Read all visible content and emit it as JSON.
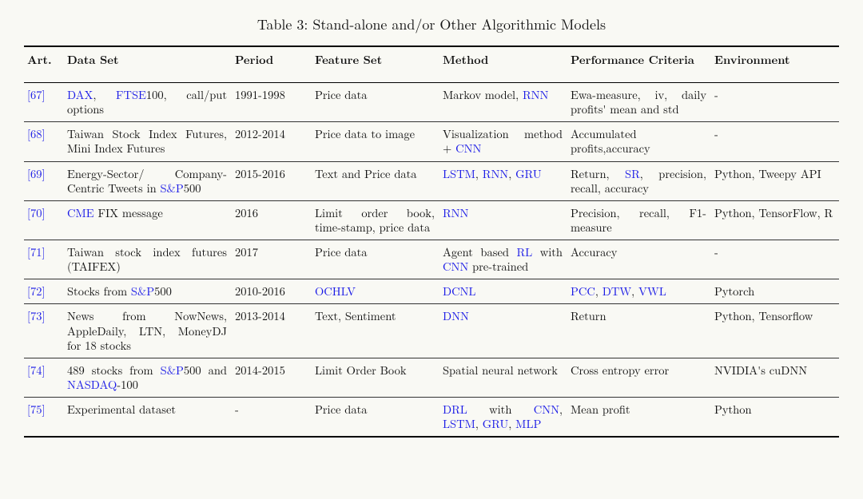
{
  "caption": "Table 3: Stand-alone and/or Other Algorithmic Models",
  "columns": [
    "Art.",
    "Data Set",
    "Period",
    "Feature Set",
    "Method",
    "Performance Criteria",
    "Environment"
  ],
  "rows": [
    {
      "art": [
        {
          "t": "[67]",
          "link": true
        }
      ],
      "dataset": [
        {
          "t": "DAX",
          "link": true
        },
        {
          "t": ", "
        },
        {
          "t": "FTSE",
          "link": true
        },
        {
          "t": "100, call/put options"
        }
      ],
      "period": [
        {
          "t": "1991-1998"
        }
      ],
      "feature": [
        {
          "t": "Price data"
        }
      ],
      "method": [
        {
          "t": "Markov model, "
        },
        {
          "t": "RNN",
          "link": true
        }
      ],
      "perf": [
        {
          "t": "Ewa-measure, iv, daily profits' mean and std"
        }
      ],
      "env": [
        {
          "t": "-"
        }
      ]
    },
    {
      "art": [
        {
          "t": "[68]",
          "link": true
        }
      ],
      "dataset": [
        {
          "t": "Taiwan Stock Index Futures, Mini Index Futures"
        }
      ],
      "period": [
        {
          "t": "2012-2014"
        }
      ],
      "feature": [
        {
          "t": "Price data to image"
        }
      ],
      "method": [
        {
          "t": "Visualization method + "
        },
        {
          "t": "CNN",
          "link": true
        }
      ],
      "perf": [
        {
          "t": "Accumulated profits,accuracy"
        }
      ],
      "env": [
        {
          "t": "-"
        }
      ]
    },
    {
      "art": [
        {
          "t": "[69]",
          "link": true
        }
      ],
      "dataset": [
        {
          "t": "Energy-Sector/ Company-Centric Tweets in "
        },
        {
          "t": "S&P",
          "link": true
        },
        {
          "t": "500"
        }
      ],
      "period": [
        {
          "t": "2015-2016"
        }
      ],
      "feature": [
        {
          "t": "Text and Price data"
        }
      ],
      "method": [
        {
          "t": "LSTM",
          "link": true
        },
        {
          "t": ", "
        },
        {
          "t": "RNN",
          "link": true
        },
        {
          "t": ", "
        },
        {
          "t": "GRU",
          "link": true
        }
      ],
      "perf": [
        {
          "t": "Return, "
        },
        {
          "t": "SR",
          "link": true
        },
        {
          "t": ", precision, recall, accuracy"
        }
      ],
      "env": [
        {
          "t": "Python, Tweepy API"
        }
      ]
    },
    {
      "art": [
        {
          "t": "[70]",
          "link": true
        }
      ],
      "dataset": [
        {
          "t": "CME",
          "link": true
        },
        {
          "t": " FIX message"
        }
      ],
      "period": [
        {
          "t": "2016"
        }
      ],
      "feature": [
        {
          "t": "Limit order book, time-stamp, price data"
        }
      ],
      "method": [
        {
          "t": "RNN",
          "link": true
        }
      ],
      "perf": [
        {
          "t": "Precision, recall, F1-measure"
        }
      ],
      "env": [
        {
          "t": "Python, TensorFlow, R"
        }
      ]
    },
    {
      "art": [
        {
          "t": "[71]",
          "link": true
        }
      ],
      "dataset": [
        {
          "t": "Taiwan stock index futures (TAIFEX)"
        }
      ],
      "period": [
        {
          "t": "2017"
        }
      ],
      "feature": [
        {
          "t": "Price data"
        }
      ],
      "method": [
        {
          "t": "Agent based "
        },
        {
          "t": "RL",
          "link": true
        },
        {
          "t": " with "
        },
        {
          "t": "CNN",
          "link": true
        },
        {
          "t": " pre-trained"
        }
      ],
      "perf": [
        {
          "t": "Accuracy"
        }
      ],
      "env": [
        {
          "t": "-"
        }
      ]
    },
    {
      "art": [
        {
          "t": "[72]",
          "link": true
        }
      ],
      "dataset": [
        {
          "t": "Stocks from "
        },
        {
          "t": "S&P",
          "link": true
        },
        {
          "t": "500"
        }
      ],
      "period": [
        {
          "t": "2010-2016"
        }
      ],
      "feature": [
        {
          "t": "OCHLV",
          "link": true
        }
      ],
      "method": [
        {
          "t": "DCNL",
          "link": true
        }
      ],
      "perf": [
        {
          "t": "PCC",
          "link": true
        },
        {
          "t": ", "
        },
        {
          "t": "DTW",
          "link": true
        },
        {
          "t": ", "
        },
        {
          "t": "VWL",
          "link": true
        }
      ],
      "env": [
        {
          "t": "Pytorch"
        }
      ]
    },
    {
      "art": [
        {
          "t": "[73]",
          "link": true
        }
      ],
      "dataset": [
        {
          "t": "News from NowNews, AppleDaily, LTN, MoneyDJ for 18 stocks"
        }
      ],
      "period": [
        {
          "t": "2013-2014"
        }
      ],
      "feature": [
        {
          "t": "Text, Sentiment"
        }
      ],
      "method": [
        {
          "t": "DNN",
          "link": true
        }
      ],
      "perf": [
        {
          "t": "Return"
        }
      ],
      "env": [
        {
          "t": "Python, Tensorflow"
        }
      ]
    },
    {
      "art": [
        {
          "t": "[74]",
          "link": true
        }
      ],
      "dataset": [
        {
          "t": "489 stocks from "
        },
        {
          "t": "S&P",
          "link": true
        },
        {
          "t": "500 and "
        },
        {
          "t": "NASDAQ",
          "link": true
        },
        {
          "t": "-100"
        }
      ],
      "period": [
        {
          "t": "2014-2015"
        }
      ],
      "feature": [
        {
          "t": "Limit Order Book"
        }
      ],
      "method": [
        {
          "t": "Spatial neural network"
        }
      ],
      "perf": [
        {
          "t": "Cross entropy error"
        }
      ],
      "env": [
        {
          "t": "NVIDIA's cuDNN"
        }
      ]
    },
    {
      "art": [
        {
          "t": "[75]",
          "link": true
        }
      ],
      "dataset": [
        {
          "t": "Experimental dataset"
        }
      ],
      "period": [
        {
          "t": "-"
        }
      ],
      "feature": [
        {
          "t": "Price data"
        }
      ],
      "method": [
        {
          "t": "DRL",
          "link": true
        },
        {
          "t": " with "
        },
        {
          "t": "CNN",
          "link": true
        },
        {
          "t": ", "
        },
        {
          "t": "LSTM",
          "link": true
        },
        {
          "t": ", "
        },
        {
          "t": "GRU",
          "link": true
        },
        {
          "t": ", "
        },
        {
          "t": "MLP",
          "link": true
        }
      ],
      "perf": [
        {
          "t": "Mean profit"
        }
      ],
      "env": [
        {
          "t": "Python"
        }
      ]
    }
  ]
}
